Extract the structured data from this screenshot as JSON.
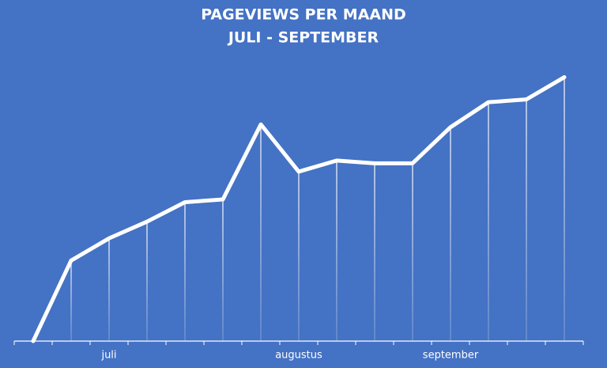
{
  "chart_data": {
    "type": "line",
    "title": "PAGEVIEWS PER MAAND",
    "subtitle": "JULI - SEPTEMBER",
    "categories": [
      null,
      null,
      "juli",
      null,
      null,
      null,
      null,
      "augustus",
      null,
      null,
      null,
      "september",
      null,
      null,
      null
    ],
    "series": [
      {
        "name": "pageviews",
        "color": "#ffffff",
        "values": [
          0,
          29,
          37,
          43,
          50,
          51,
          78,
          61,
          65,
          64,
          64,
          77,
          86,
          87,
          95
        ]
      }
    ],
    "ylim": [
      0,
      100
    ]
  }
}
